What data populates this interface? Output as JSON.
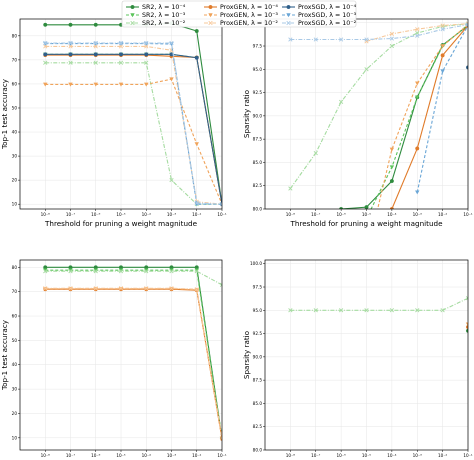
{
  "legend": {
    "entries": [
      {
        "label": "SR2, λ = 10⁻⁴",
        "color": "#2e8b3e",
        "style": "solid",
        "marker": "circle"
      },
      {
        "label": "SR2, λ = 10⁻³",
        "color": "#5cc45c",
        "style": "dashed",
        "marker": "triangle"
      },
      {
        "label": "SR2, λ = 10⁻²",
        "color": "#a5dba0",
        "style": "dashdot",
        "marker": "x"
      },
      {
        "label": "ProxGEN, λ = 10⁻⁴",
        "color": "#e07b2a",
        "style": "solid",
        "marker": "circle"
      },
      {
        "label": "ProxGEN, λ = 10⁻³",
        "color": "#f0a35a",
        "style": "dashed",
        "marker": "triangle"
      },
      {
        "label": "ProxGEN, λ = 10⁻²",
        "color": "#f7c89a",
        "style": "dashdot",
        "marker": "x"
      },
      {
        "label": "ProxSGD, λ = 10⁻⁴",
        "color": "#2f5f8a",
        "style": "solid",
        "marker": "circle"
      },
      {
        "label": "ProxSGD, λ = 10⁻³",
        "color": "#6aa6d6",
        "style": "dashed",
        "marker": "triangle"
      },
      {
        "label": "ProxSGD, λ = 10⁻²",
        "color": "#a9c9e6",
        "style": "dashdot",
        "marker": "x"
      }
    ]
  },
  "chart_data": [
    {
      "type": "line",
      "title": "",
      "xlabel": "Threshold for pruning a weight magnitude",
      "ylabel": "Top-1 test accuracy",
      "xscale": "log",
      "xlim": [
        1e-09,
        0.1
      ],
      "ylim": [
        8,
        87
      ],
      "xticks": [
        "10⁻⁸",
        "10⁻⁷",
        "10⁻⁶",
        "10⁻⁵",
        "10⁻⁴",
        "10⁻³",
        "10⁻²",
        "10⁻¹"
      ],
      "yticks": [
        10,
        20,
        30,
        40,
        50,
        60,
        70,
        80
      ],
      "grid": true,
      "x": [
        1e-08,
        1e-07,
        1e-06,
        1e-05,
        0.0001,
        0.001,
        0.01,
        0.1
      ],
      "series": [
        {
          "name": "SR2, λ = 10⁻⁴",
          "values": [
            84.6,
            84.6,
            84.6,
            84.6,
            84.6,
            85.2,
            82.0,
            10.0
          ]
        },
        {
          "name": "SR2, λ = 10⁻³",
          "values": [
            72.3,
            72.3,
            72.3,
            72.3,
            72.3,
            72.3,
            70.9,
            10.0
          ]
        },
        {
          "name": "SR2, λ = 10⁻²",
          "values": [
            68.8,
            68.8,
            68.8,
            68.8,
            68.8,
            20.0,
            10.0,
            10.0
          ]
        },
        {
          "name": "ProxGEN, λ = 10⁻⁴",
          "values": [
            72.0,
            72.0,
            72.0,
            72.0,
            72.0,
            71.5,
            71.0,
            10.0
          ]
        },
        {
          "name": "ProxGEN, λ = 10⁻³",
          "values": [
            59.8,
            59.8,
            59.8,
            59.8,
            59.8,
            62.0,
            35.0,
            10.0
          ]
        },
        {
          "name": "ProxGEN, λ = 10⁻²",
          "values": [
            75.6,
            75.6,
            75.6,
            75.6,
            75.6,
            74.0,
            11.0,
            10.0
          ]
        },
        {
          "name": "ProxSGD, λ = 10⁻⁴",
          "values": [
            72.3,
            72.3,
            72.3,
            72.3,
            72.3,
            72.3,
            70.9,
            10.0
          ]
        },
        {
          "name": "ProxSGD, λ = 10⁻³",
          "values": [
            76.8,
            76.8,
            76.8,
            76.8,
            76.8,
            76.6,
            10.0,
            10.0
          ]
        },
        {
          "name": "ProxSGD, λ = 10⁻²",
          "values": [
            77.0,
            77.0,
            77.0,
            77.0,
            77.0,
            77.0,
            10.5,
            10.0
          ]
        }
      ]
    },
    {
      "type": "line",
      "title": "",
      "xlabel": "Threshold for pruning a weight magnitude",
      "ylabel": "Sparsity ratio",
      "xscale": "log",
      "xlim": [
        1e-09,
        0.1
      ],
      "ylim": [
        80,
        100.4
      ],
      "xticks": [
        "10⁻⁸",
        "10⁻⁷",
        "10⁻⁶",
        "10⁻⁵",
        "10⁻⁴",
        "10⁻³",
        "10⁻²",
        "10⁻¹"
      ],
      "yticks": [
        80.0,
        82.5,
        85.0,
        87.5,
        90.0,
        92.5,
        95.0,
        97.5,
        100.0
      ],
      "grid": true,
      "x": [
        1e-08,
        1e-07,
        1e-06,
        1e-05,
        0.0001,
        0.001,
        0.01,
        0.1
      ],
      "series": [
        {
          "name": "SR2, λ = 10⁻⁴",
          "values": [
            null,
            79.0,
            80.0,
            80.2,
            83.0,
            92.0,
            97.6,
            99.7
          ]
        },
        {
          "name": "SR2, λ = 10⁻³",
          "values": [
            null,
            null,
            null,
            79.0,
            84.5,
            92.0,
            97.5,
            99.8
          ]
        },
        {
          "name": "SR2, λ = 10⁻²",
          "values": [
            82.2,
            86.0,
            91.5,
            95.0,
            97.5,
            98.9,
            99.6,
            99.9
          ]
        },
        {
          "name": "ProxGEN, λ = 10⁻⁴",
          "values": [
            null,
            null,
            null,
            75.0,
            80.0,
            86.5,
            96.5,
            99.7
          ]
        },
        {
          "name": "ProxGEN, λ = 10⁻³",
          "values": [
            null,
            null,
            null,
            75.0,
            86.4,
            93.5,
            97.5,
            99.8
          ]
        },
        {
          "name": "ProxGEN, λ = 10⁻²",
          "values": [
            null,
            null,
            null,
            98.0,
            98.8,
            99.3,
            99.7,
            99.9
          ]
        },
        {
          "name": "ProxSGD, λ = 10⁻⁴",
          "values": [
            null,
            null,
            null,
            null,
            null,
            null,
            null,
            95.2
          ]
        },
        {
          "name": "ProxSGD, λ = 10⁻³",
          "values": [
            null,
            null,
            null,
            null,
            null,
            81.8,
            94.8,
            99.7
          ]
        },
        {
          "name": "ProxSGD, λ = 10⁻²",
          "values": [
            98.2,
            98.2,
            98.2,
            98.2,
            98.3,
            98.6,
            99.3,
            99.8
          ]
        }
      ]
    },
    {
      "type": "line",
      "title": "",
      "xlabel": "Threshold for pruning a weight magnitude",
      "ylabel": "Top-1 test accuracy",
      "xscale": "log",
      "xlim": [
        1e-09,
        0.1
      ],
      "ylim": [
        5,
        83
      ],
      "xticks": [
        "10⁻⁸",
        "10⁻⁷",
        "10⁻⁶",
        "10⁻⁵",
        "10⁻⁴",
        "10⁻³",
        "10⁻²",
        "10⁻¹"
      ],
      "yticks": [
        10,
        20,
        30,
        40,
        50,
        60,
        70,
        80
      ],
      "grid": true,
      "x": [
        1e-08,
        1e-07,
        1e-06,
        1e-05,
        0.0001,
        0.001,
        0.01,
        0.1
      ],
      "series": [
        {
          "name": "SR2, λ = 10⁻⁴",
          "values": [
            80.0,
            80.0,
            80.0,
            80.0,
            80.0,
            80.0,
            80.0,
            9.8
          ]
        },
        {
          "name": "SR2, λ = 10⁻³",
          "values": [
            78.8,
            78.8,
            78.8,
            78.8,
            78.8,
            78.8,
            78.8,
            9.8
          ]
        },
        {
          "name": "SR2, λ = 10⁻²",
          "values": [
            78.4,
            78.4,
            78.4,
            78.4,
            78.4,
            78.4,
            78.4,
            72.8
          ]
        },
        {
          "name": "ProxGEN, λ = 10⁻⁴",
          "values": [
            71.0,
            71.0,
            71.0,
            71.0,
            71.0,
            71.0,
            70.6,
            9.6
          ]
        },
        {
          "name": "ProxGEN, λ = 10⁻³",
          "values": [
            71.2,
            71.2,
            71.2,
            71.2,
            71.2,
            71.2,
            70.8,
            9.8
          ]
        },
        {
          "name": "ProxGEN, λ = 10⁻²",
          "values": [
            71.4,
            71.4,
            71.4,
            71.4,
            71.4,
            71.4,
            71.0,
            10.0
          ]
        }
      ]
    },
    {
      "type": "line",
      "title": "",
      "xlabel": "Threshold for pruning a weight magnitude",
      "ylabel": "Sparsity ratio",
      "xscale": "log",
      "xlim": [
        1e-09,
        0.1
      ],
      "ylim": [
        80,
        100.4
      ],
      "xticks": [
        "10⁻⁸",
        "10⁻⁷",
        "10⁻⁶",
        "10⁻⁵",
        "10⁻⁴",
        "10⁻³",
        "10⁻²",
        "10⁻¹"
      ],
      "yticks": [
        80.0,
        82.5,
        85.0,
        87.5,
        90.0,
        92.5,
        95.0,
        97.5,
        100.0
      ],
      "grid": true,
      "x": [
        1e-08,
        1e-07,
        1e-06,
        1e-05,
        0.0001,
        0.001,
        0.01,
        0.1
      ],
      "series": [
        {
          "name": "SR2, λ = 10⁻⁴",
          "values": [
            null,
            null,
            null,
            null,
            null,
            null,
            null,
            92.8
          ]
        },
        {
          "name": "SR2, λ = 10⁻²",
          "values": [
            95.0,
            95.0,
            95.0,
            95.0,
            95.0,
            95.0,
            95.0,
            96.3
          ]
        },
        {
          "name": "ProxGEN, λ = 10⁻⁴",
          "values": [
            null,
            null,
            null,
            null,
            null,
            null,
            null,
            93.2
          ]
        },
        {
          "name": "ProxGEN, λ = 10⁻³",
          "values": [
            null,
            null,
            null,
            null,
            null,
            null,
            null,
            93.5
          ]
        }
      ]
    }
  ]
}
